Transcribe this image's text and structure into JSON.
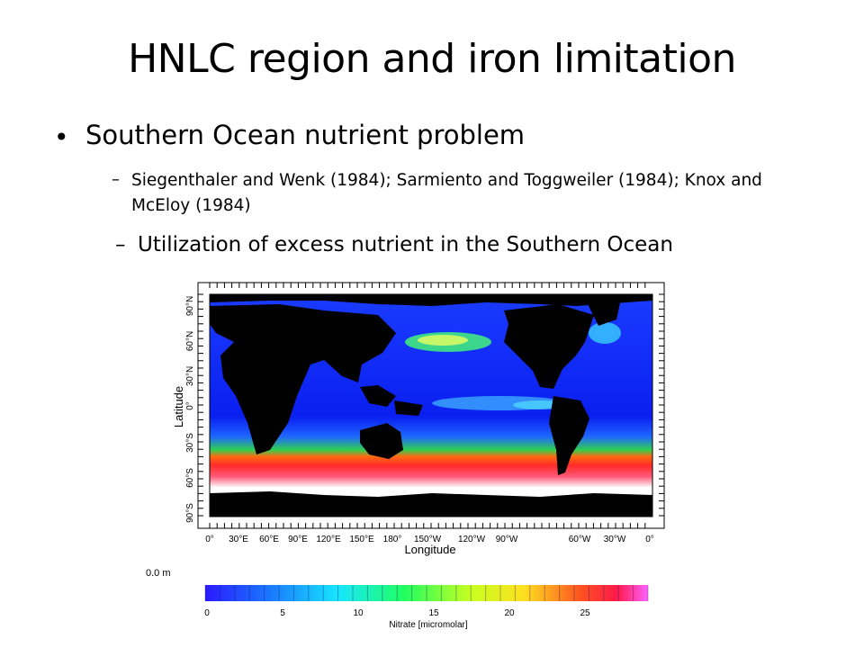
{
  "slide": {
    "title": "HNLC region and iron limitation",
    "bullet": "Southern Ocean nutrient problem",
    "sub_bullets": [
      "Siegenthaler and Wenk (1984); Sarmiento and Toggweiler (1984); Knox and McEloy (1984)",
      "Utilization of excess nutrient in the Southern Ocean"
    ]
  },
  "map": {
    "y_axis_label": "Latitude",
    "x_axis_label": "Longitude",
    "lat_ticks": [
      "90°N",
      "60°N",
      "30°N",
      "0°",
      "30°S",
      "60°S",
      "90°S"
    ],
    "lon_ticks": [
      "0°",
      "30°E",
      "60°E",
      "90°E",
      "120°E",
      "150°E",
      "180°",
      "150°W",
      "120°W",
      "90°W",
      "60°W",
      "30°W",
      "0°"
    ],
    "depth_label": "0.0 m",
    "colorbar_label": "Nitrate [micromolar]",
    "colorbar_ticks": [
      "0",
      "5",
      "10",
      "15",
      "20",
      "25"
    ]
  }
}
